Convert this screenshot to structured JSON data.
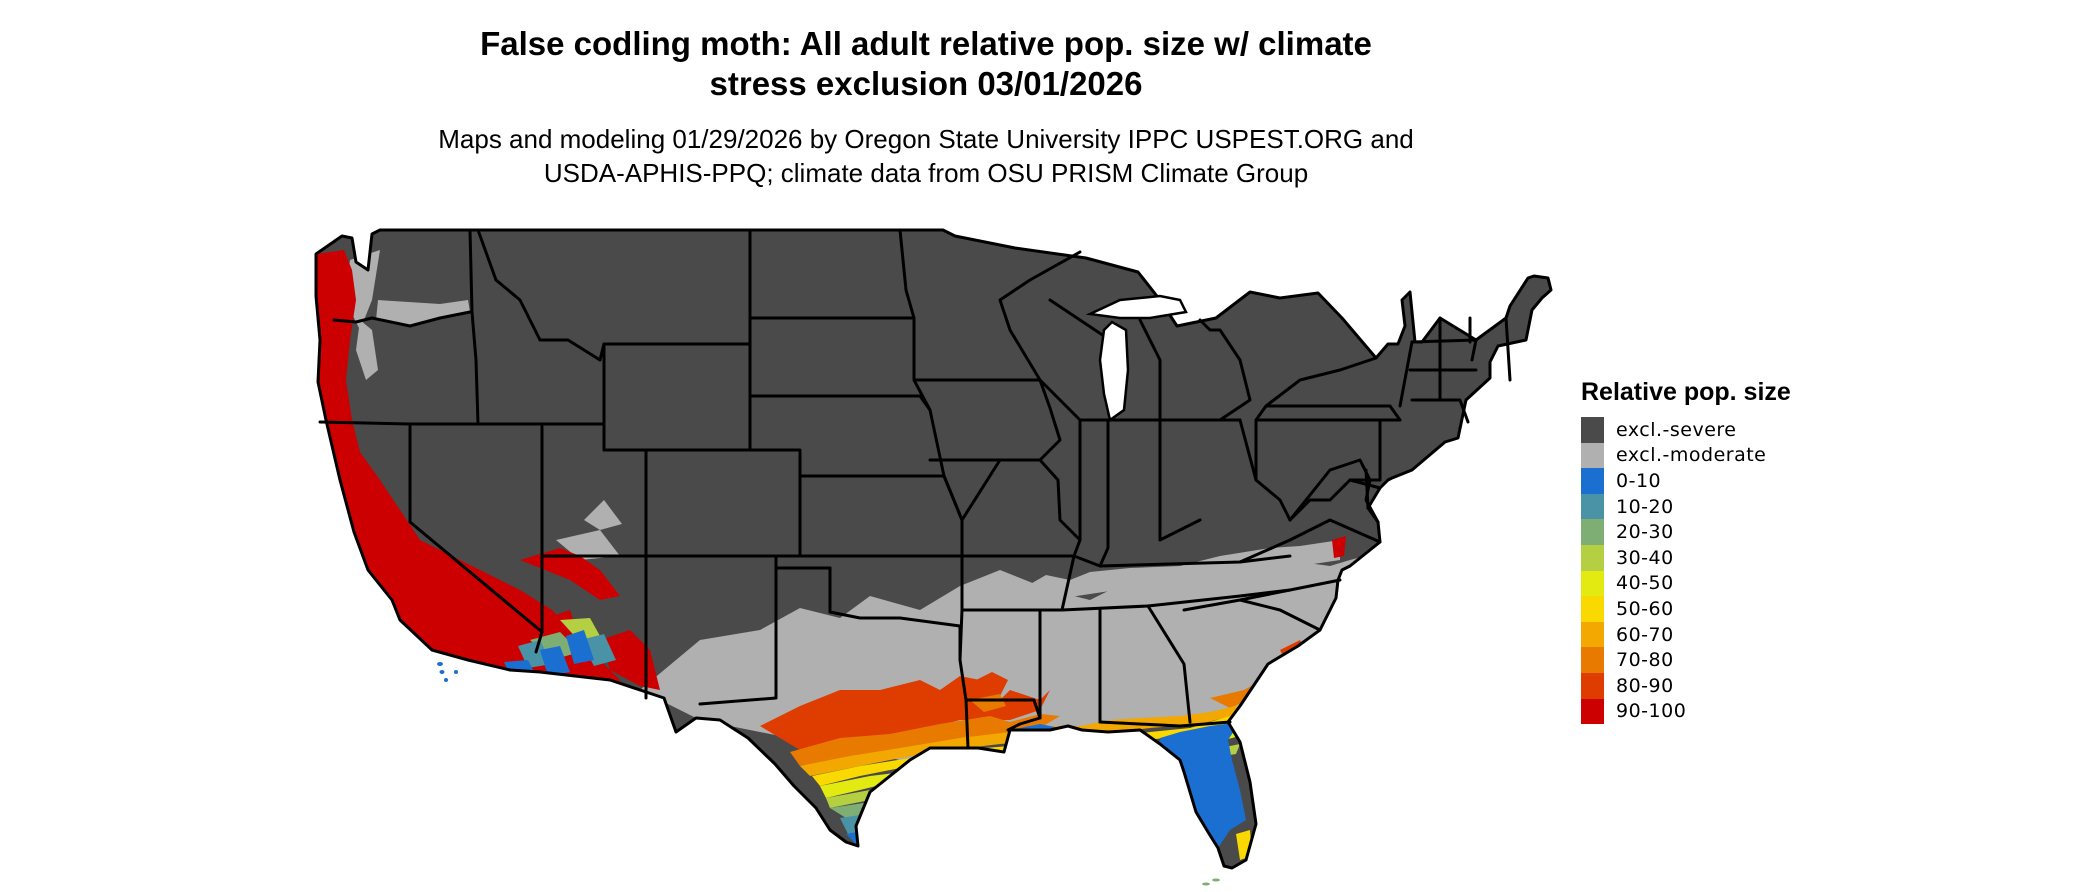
{
  "title_lines": [
    "False codling moth: All adult relative pop. size w/ climate",
    "stress exclusion 03/01/2026"
  ],
  "subtitle_lines": [
    "Maps and modeling 01/29/2026 by Oregon State University IPPC USPEST.ORG and",
    "USDA-APHIS-PPQ; climate data from OSU PRISM Climate Group"
  ],
  "legend": {
    "title": "Relative pop. size",
    "items": [
      {
        "label": "excl.-severe",
        "color": "#4a4a4a"
      },
      {
        "label": "excl.-moderate",
        "color": "#b0b0b0"
      },
      {
        "label": "0-10",
        "color": "#1a6fd0"
      },
      {
        "label": "10-20",
        "color": "#4a92a6"
      },
      {
        "label": "20-30",
        "color": "#7fae74"
      },
      {
        "label": "30-40",
        "color": "#b4cf42"
      },
      {
        "label": "40-50",
        "color": "#e2ea12"
      },
      {
        "label": "50-60",
        "color": "#fad900"
      },
      {
        "label": "60-70",
        "color": "#f2a800"
      },
      {
        "label": "70-80",
        "color": "#e97a00"
      },
      {
        "label": "80-90",
        "color": "#df3d00"
      },
      {
        "label": "90-100",
        "color": "#cc0000"
      }
    ]
  },
  "map": {
    "region": "Conterminous United States",
    "colors": {
      "severe": "#4a4a4a",
      "moderate": "#b0b0b0",
      "border": "#000000"
    }
  }
}
